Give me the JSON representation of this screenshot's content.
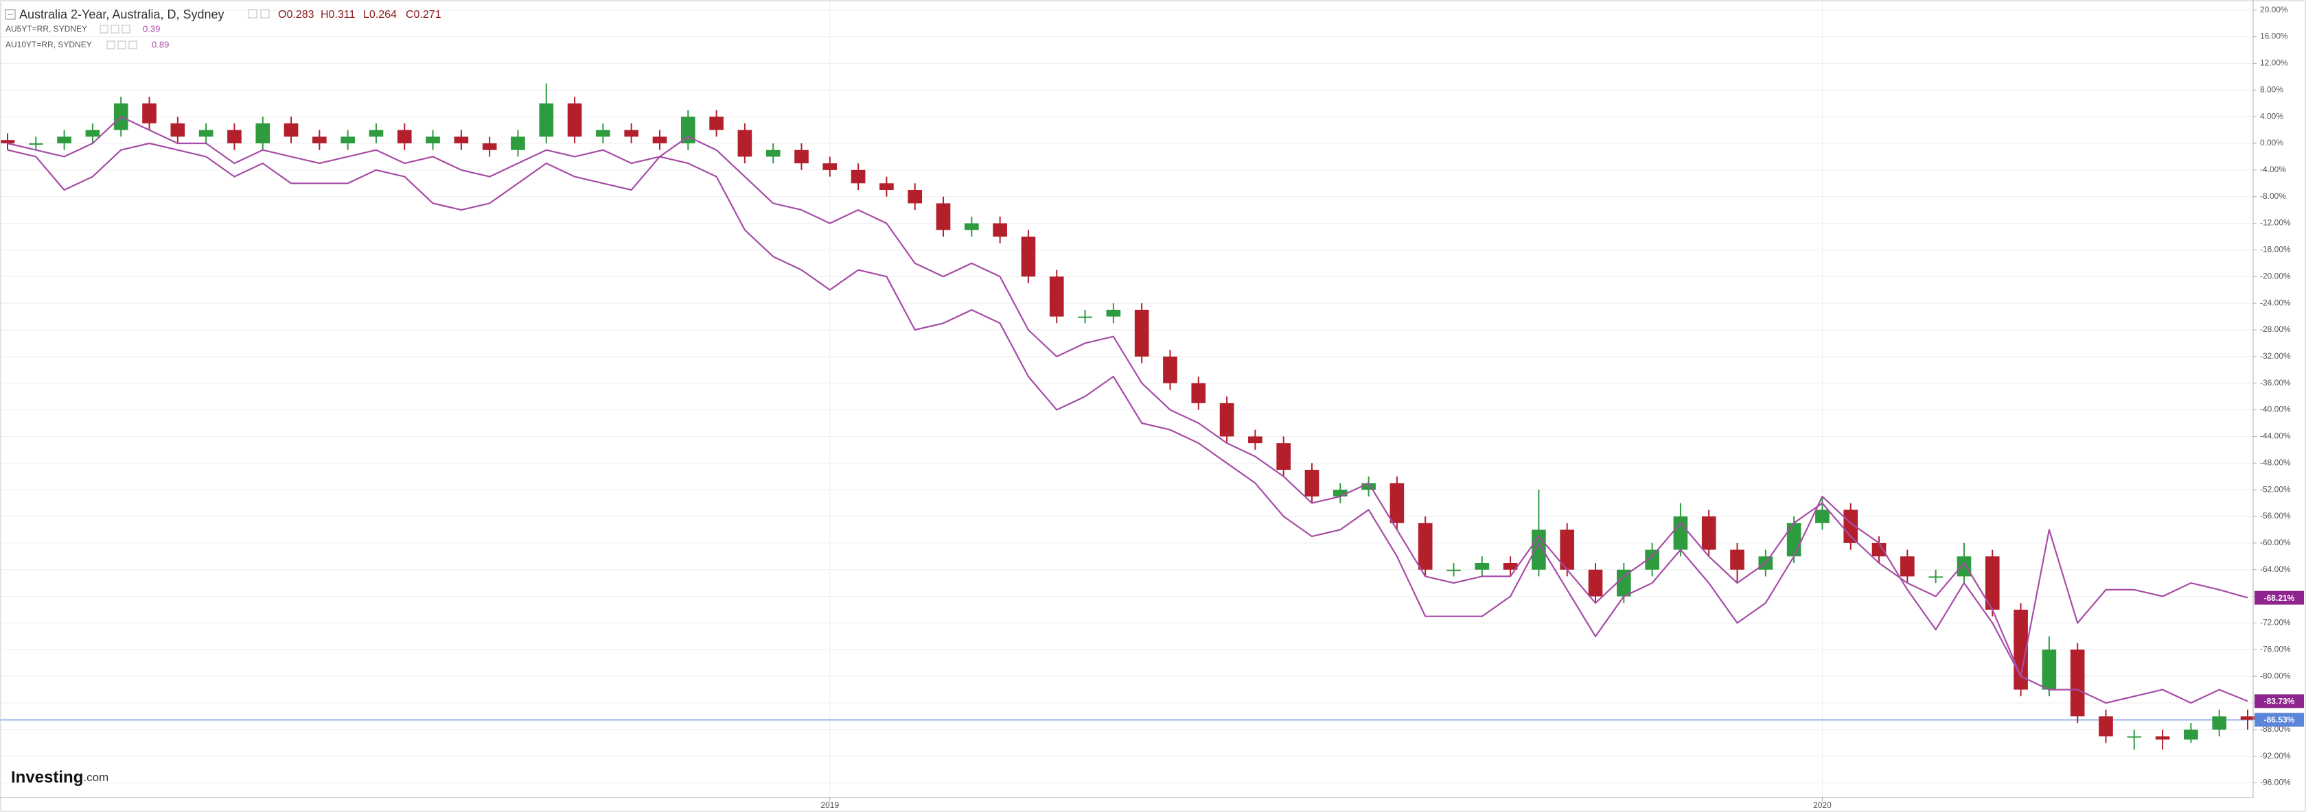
{
  "chart_data": {
    "type": "candlestick",
    "header": {
      "ohlc_labels": [
        "O0.283",
        "H0.311",
        "L0.264",
        "C0.271"
      ]
    },
    "logo": {
      "main": "Investing",
      "suffix": ".com"
    },
    "categories": [
      null,
      null,
      null,
      null,
      null,
      null,
      null,
      null,
      null,
      null,
      null,
      null,
      null,
      null,
      null,
      null,
      null,
      null,
      null,
      null,
      null,
      null,
      null,
      null,
      null,
      null,
      null,
      null,
      null,
      "2019",
      null,
      null,
      null,
      null,
      null,
      null,
      null,
      null,
      null,
      null,
      null,
      null,
      null,
      null,
      null,
      null,
      null,
      null,
      null,
      null,
      null,
      null,
      null,
      null,
      null,
      null,
      null,
      null,
      null,
      null,
      null,
      null,
      null,
      null,
      "2020",
      null,
      null,
      null,
      null,
      null,
      null,
      null,
      null,
      null,
      null,
      null,
      null,
      null,
      null,
      null
    ],
    "ylim": [
      -98,
      21
    ],
    "yticks": [
      {
        "value": 20,
        "label": "20.00%"
      },
      {
        "value": 16,
        "label": "16.00%"
      },
      {
        "value": 12,
        "label": "12.00%"
      },
      {
        "value": 8,
        "label": "8.00%"
      },
      {
        "value": 4,
        "label": "4.00%"
      },
      {
        "value": 0,
        "label": "0.00%"
      },
      {
        "value": -4,
        "label": "-4.00%"
      },
      {
        "value": -8,
        "label": "-8.00%"
      },
      {
        "value": -12,
        "label": "-12.00%"
      },
      {
        "value": -16,
        "label": "-16.00%"
      },
      {
        "value": -20,
        "label": "-20.00%"
      },
      {
        "value": -24,
        "label": "-24.00%"
      },
      {
        "value": -28,
        "label": "-28.00%"
      },
      {
        "value": -32,
        "label": "-32.00%"
      },
      {
        "value": -36,
        "label": "-36.00%"
      },
      {
        "value": -40,
        "label": "-40.00%"
      },
      {
        "value": -44,
        "label": "-44.00%"
      },
      {
        "value": -48,
        "label": "-48.00%"
      },
      {
        "value": -52,
        "label": "-52.00%"
      },
      {
        "value": -56,
        "label": "-56.00%"
      },
      {
        "value": -60,
        "label": "-60.00%"
      },
      {
        "value": -64,
        "label": "-64.00%"
      },
      {
        "value": -68,
        "label": "-68.00%"
      },
      {
        "value": -72,
        "label": "-72.00%"
      },
      {
        "value": -76,
        "label": "-76.00%"
      },
      {
        "value": -80,
        "label": "-80.00%"
      },
      {
        "value": -84,
        "label": "-84.00%"
      },
      {
        "value": -88,
        "label": "-88.00%"
      },
      {
        "value": -92,
        "label": "-92.00%"
      },
      {
        "value": -96,
        "label": "-96.00%"
      }
    ],
    "grid": true,
    "series": [
      {
        "name": "Australia 2-Year, Australia, D, Sydney",
        "type": "candlestick",
        "up_color": "#2e9b3f",
        "down_color": "#b3202b",
        "price_line_color": "#9fb6ec",
        "tag_color": "#5b86d9",
        "last_label": "-86.53%",
        "open": [
          0.5,
          0,
          0,
          1,
          2,
          6,
          3,
          1,
          2,
          0,
          3,
          1,
          0,
          1,
          2,
          0,
          1,
          0,
          -1,
          1,
          6,
          1,
          2,
          1,
          0,
          4,
          2,
          -2,
          -1,
          -3,
          -4,
          -6,
          -7,
          -9,
          -13,
          -12,
          -14,
          -20,
          -26,
          -26,
          -25,
          -32,
          -36,
          -39,
          -44,
          -45,
          -49,
          -53,
          -52,
          -51,
          -57,
          -64,
          -64,
          -63,
          -64,
          -58,
          -64,
          -68,
          -64,
          -61,
          -56,
          -61,
          -64,
          -62,
          -57,
          -55,
          -60,
          -62,
          -65,
          -65,
          -62,
          -70,
          -82,
          -76,
          -86,
          -89,
          -89,
          -89.5,
          -88,
          -86
        ],
        "high": [
          1.5,
          1,
          2,
          3,
          7,
          7,
          4,
          3,
          3,
          4,
          4,
          2,
          2,
          3,
          3,
          2,
          2,
          1,
          2,
          9,
          7,
          3,
          3,
          2,
          5,
          5,
          3,
          0,
          0,
          -2,
          -3,
          -5,
          -6,
          -8,
          -11,
          -11,
          -13,
          -19,
          -25,
          -24,
          -24,
          -31,
          -35,
          -38,
          -43,
          -44,
          -48,
          -51,
          -50,
          -50,
          -56,
          -63,
          -62,
          -62,
          -52,
          -57,
          -63,
          -63,
          -60,
          -54,
          -55,
          -60,
          -61,
          -56,
          -53,
          -54,
          -59,
          -61,
          -64,
          -60,
          -61,
          -69,
          -74,
          -75,
          -85,
          -88,
          -88,
          -87,
          -85,
          -85
        ],
        "low": [
          -1,
          -1,
          -1,
          0,
          1,
          2,
          0,
          0,
          -1,
          -1,
          0,
          -1,
          -1,
          0,
          -1,
          -1,
          -1,
          -2,
          -2,
          0,
          0,
          0,
          0,
          -1,
          -1,
          1,
          -3,
          -3,
          -4,
          -5,
          -7,
          -8,
          -10,
          -14,
          -14,
          -15,
          -21,
          -27,
          -27,
          -27,
          -33,
          -37,
          -40,
          -45,
          -46,
          -50,
          -54,
          -54,
          -53,
          -58,
          -65,
          -65,
          -65,
          -65,
          -65,
          -65,
          -69,
          -69,
          -65,
          -62,
          -62,
          -66,
          -65,
          -63,
          -58,
          -61,
          -63,
          -66,
          -66,
          -66,
          -71,
          -83,
          -83,
          -87,
          -90,
          -91,
          -91,
          -90,
          -89,
          -88
        ],
        "close": [
          0,
          0,
          1,
          2,
          6,
          3,
          1,
          2,
          0,
          3,
          1,
          0,
          1,
          2,
          0,
          1,
          0,
          -1,
          1,
          6,
          1,
          2,
          1,
          0,
          4,
          2,
          -2,
          -1,
          -3,
          -4,
          -6,
          -7,
          -9,
          -13,
          -12,
          -14,
          -20,
          -26,
          -26,
          -25,
          -32,
          -36,
          -39,
          -44,
          -45,
          -49,
          -53,
          -52,
          -51,
          -57,
          -64,
          -64,
          -63,
          -64,
          -58,
          -64,
          -68,
          -64,
          -61,
          -56,
          -61,
          -64,
          -62,
          -57,
          -55,
          -60,
          -62,
          -65,
          -65,
          -62,
          -70,
          -82,
          -76,
          -86,
          -89,
          -89,
          -89.5,
          -88,
          -86,
          -86.53
        ]
      },
      {
        "name": "AU5YT=RR, SYDNEY",
        "type": "line",
        "color": "#a64ca6",
        "tag_color": "#8e248e",
        "legend_value": 0.39,
        "last_label": "-83.73%",
        "values": [
          0,
          -1,
          -2,
          0,
          4,
          2,
          0,
          0,
          -3,
          -1,
          -2,
          -3,
          -2,
          -1,
          -3,
          -2,
          -4,
          -5,
          -3,
          -1,
          -2,
          -1,
          -3,
          -2,
          1,
          -1,
          -5,
          -9,
          -10,
          -12,
          -10,
          -12,
          -18,
          -20,
          -18,
          -20,
          -28,
          -32,
          -30,
          -29,
          -36,
          -40,
          -42,
          -45,
          -47,
          -50,
          -54,
          -53,
          -51,
          -58,
          -65,
          -66,
          -65,
          -65,
          -59,
          -64,
          -69,
          -65,
          -62,
          -57,
          -62,
          -66,
          -63,
          -57,
          -54,
          -59,
          -63,
          -66,
          -68,
          -63,
          -70,
          -80,
          -82,
          -82,
          -84,
          -83,
          -82,
          -84,
          -82,
          -83.73
        ]
      },
      {
        "name": "AU10YT=RR, SYDNEY",
        "type": "line",
        "color": "#a64ca6",
        "tag_color": "#8e248e",
        "legend_value": 0.89,
        "last_label": "-68.21%",
        "values": [
          -1,
          -2,
          -7,
          -5,
          -1,
          0,
          -1,
          -2,
          -5,
          -3,
          -6,
          -6,
          -6,
          -4,
          -5,
          -9,
          -10,
          -9,
          -6,
          -3,
          -5,
          -6,
          -7,
          -2,
          -3,
          -5,
          -13,
          -17,
          -19,
          -22,
          -19,
          -20,
          -28,
          -27,
          -25,
          -27,
          -35,
          -40,
          -38,
          -35,
          -42,
          -43,
          -45,
          -48,
          -51,
          -56,
          -59,
          -58,
          -55,
          -62,
          -71,
          -71,
          -71,
          -68,
          -60,
          -67,
          -74,
          -68,
          -66,
          -61,
          -66,
          -72,
          -69,
          -62,
          -53,
          -57,
          -60,
          -67,
          -73,
          -66,
          -72,
          -80,
          -58,
          -72,
          -67,
          -67,
          -68,
          -66,
          -67,
          -68.21
        ]
      }
    ]
  }
}
